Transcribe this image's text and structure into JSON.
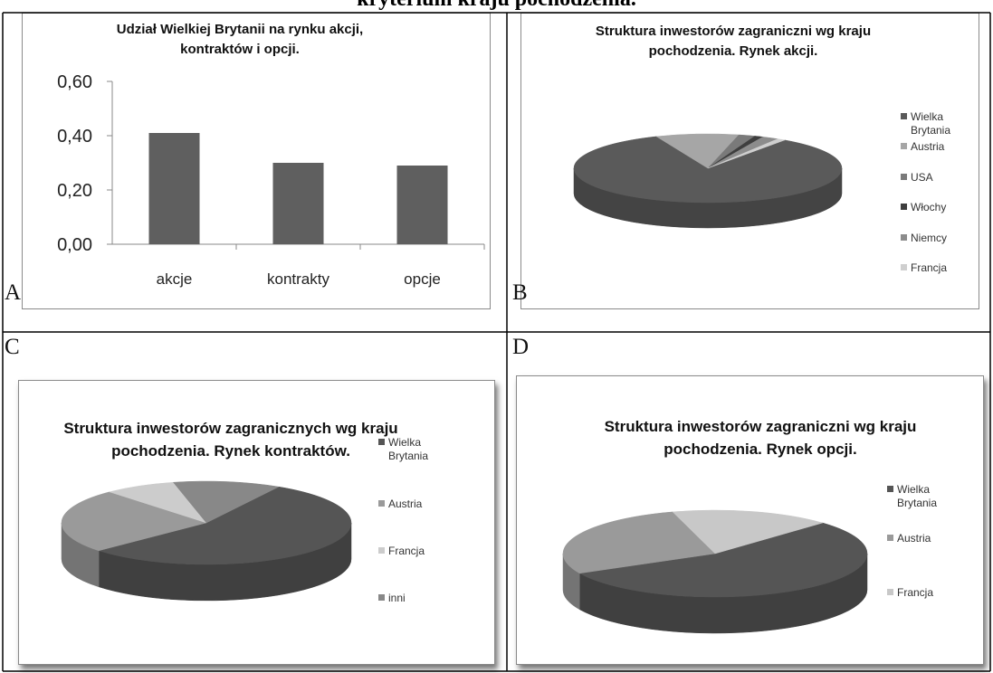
{
  "heading": "kryterium kraju pochodzenia.",
  "panel_labels": [
    "A",
    "B",
    "C",
    "D"
  ],
  "chart_data": [
    {
      "type": "bar",
      "title": "Udział Wielkiej Brytanii na rynku akcji, kontraktów i opcji.",
      "categories": [
        "akcje",
        "kontrakty",
        "opcje"
      ],
      "values": [
        0.41,
        0.3,
        0.29
      ],
      "color": "#5f5f5f",
      "ylim": [
        0,
        0.6
      ],
      "yticks": [
        {
          "value": 0,
          "label": "0,00"
        },
        {
          "value": 0.2,
          "label": "0,20"
        },
        {
          "value": 0.4,
          "label": "0,40"
        },
        {
          "value": 0.6,
          "label": "0,60"
        }
      ],
      "grid": false
    },
    {
      "type": "pie",
      "title": "Struktura inwestorów zagraniczni wg kraju pochodzenia.  Rynek akcji.",
      "categories": [
        "Wielka Brytania",
        "Austria",
        "USA",
        "Włochy",
        "Niemcy",
        "Francja"
      ],
      "values": [
        84,
        10,
        2,
        1,
        2,
        1
      ],
      "colors": [
        "#5a5a5a",
        "#a6a6a6",
        "#7a7a7a",
        "#3e3e3e",
        "#8c8c8c",
        "#cfcfcf"
      ]
    },
    {
      "type": "pie",
      "title": "Struktura inwestorów zagranicznych wg kraju pochodzenia. Rynek kontraktów.",
      "categories": [
        "Wielka Brytania",
        "Austria",
        "Francja",
        "inni"
      ],
      "values": [
        55,
        25,
        8,
        12
      ],
      "colors": [
        "#555555",
        "#9a9a9a",
        "#cccccc",
        "#888888"
      ]
    },
    {
      "type": "pie",
      "title": "Struktura inwestorów zagraniczni wg kraju pochodzenia. Rynek opcji.",
      "categories": [
        "Wielka Brytania",
        "Austria",
        "Francja"
      ],
      "values": [
        55,
        28,
        17
      ],
      "colors": [
        "#555555",
        "#9a9a9a",
        "#c8c8c8"
      ]
    }
  ]
}
